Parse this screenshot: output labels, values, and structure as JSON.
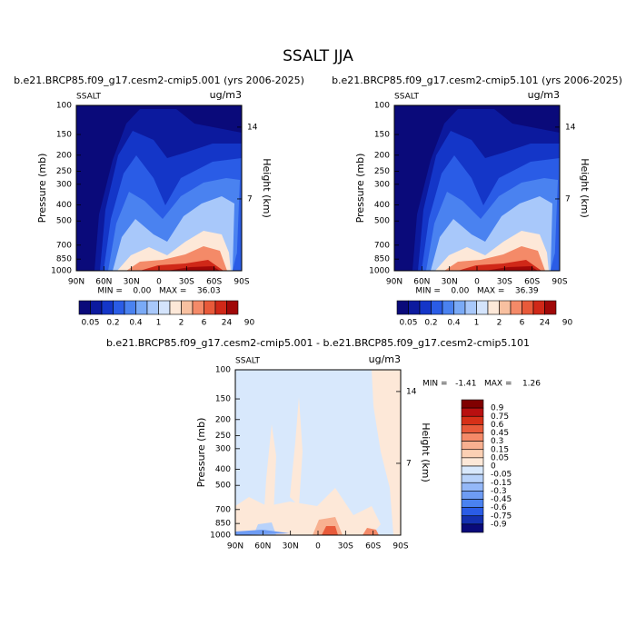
{
  "title": "SSALT JJA",
  "axes": {
    "y_log": true,
    "ylim": [
      1000,
      100
    ],
    "yticks": [
      100,
      150,
      200,
      250,
      300,
      400,
      500,
      700,
      850,
      1000
    ],
    "y2ticks": [
      14,
      7
    ],
    "xlim": [
      90,
      -90
    ],
    "xticks": [
      {
        "value": 90,
        "label": "90N"
      },
      {
        "value": 60,
        "label": "60N"
      },
      {
        "value": 30,
        "label": "30N"
      },
      0,
      {
        "value": -30,
        "label": "30S"
      },
      {
        "value": -60,
        "label": "60S"
      },
      {
        "value": -90,
        "label": "90S"
      }
    ]
  },
  "panels": [
    {
      "title": "b.e21.BRCP85.f09_g17.cesm2-cmip5.001 (yrs 2006-2025)",
      "left_label": "SSALT",
      "right_label": "ug/m3",
      "y_label": "Pressure (mb)",
      "y2_label": "Height (km)",
      "stats": "MIN =    0.00   MAX =    36.03"
    },
    {
      "title": "b.e21.BRCP85.f09_g17.cesm2-cmip5.101 (yrs 2006-2025)",
      "left_label": "SSALT",
      "right_label": "ug/m3",
      "y_label": "Pressure (mb)",
      "y2_label": "Height (km)",
      "stats": "MIN =    0.00   MAX =    36.39"
    },
    {
      "title": "b.e21.BRCP85.f09_g17.cesm2-cmip5.001 - b.e21.BRCP85.f09_g17.cesm2-cmip5.101",
      "left_label": "SSALT",
      "right_label": "ug/m3",
      "y_label": "Pressure (mb)",
      "y2_label": "Height (km)",
      "stats": "MIN =   -1.41   MAX =    1.26"
    }
  ],
  "colorbar": {
    "labels": [
      0.05,
      0.2,
      0.4,
      1,
      2,
      6,
      24,
      90
    ],
    "colors": [
      "#0a0a7a",
      "#0c1a9e",
      "#1436c8",
      "#2a5ce6",
      "#4a82f0",
      "#7aaaf6",
      "#a8c8fa",
      "#d4e4fc",
      "#fde8d8",
      "#f8c0a0",
      "#f48a68",
      "#e85a3a",
      "#d02818",
      "#a00808"
    ]
  },
  "diff_colorbar": {
    "labels": [
      0.9,
      0.75,
      0.6,
      0.45,
      0.3,
      0.15,
      0.05,
      0,
      -0.05,
      -0.15,
      -0.3,
      -0.45,
      -0.6,
      -0.75,
      -0.9
    ],
    "colors": [
      "#800000",
      "#b81010",
      "#d63018",
      "#e85a3a",
      "#f48a68",
      "#f8b090",
      "#fbd0b4",
      "#fde8d8",
      "#d8e8fc",
      "#b8d2fa",
      "#94b8f8",
      "#6e9cf4",
      "#4a82f0",
      "#2a5ce6",
      "#1430b0",
      "#0a0a7a"
    ]
  }
}
